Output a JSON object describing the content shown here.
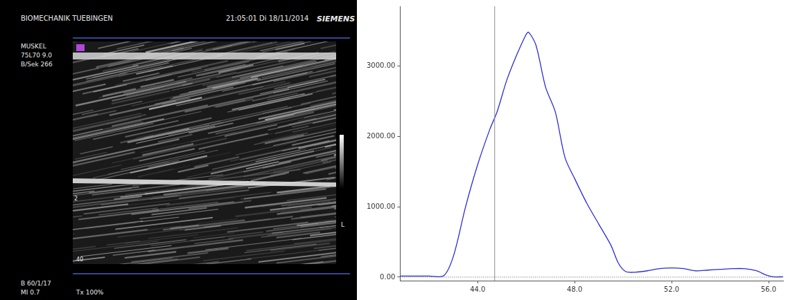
{
  "chart_data": {
    "type": "line",
    "color": "#2b2bd6",
    "grid": false,
    "tick_labels": true,
    "x": [
      40.8,
      41.5,
      42.0,
      42.6,
      43.0,
      43.5,
      44.0,
      44.5,
      44.8,
      45.2,
      45.6,
      46.0,
      46.1,
      46.4,
      46.8,
      47.2,
      47.6,
      48.0,
      48.5,
      49.0,
      49.5,
      49.8,
      50.1,
      50.5,
      51.0,
      51.5,
      52.0,
      52.5,
      53.0,
      53.5,
      54.0,
      54.5,
      55.0,
      55.5,
      55.9,
      56.2,
      56.6
    ],
    "values": [
      15,
      15,
      15,
      20,
      300,
      1000,
      1600,
      2100,
      2350,
      2800,
      3150,
      3450,
      3480,
      3300,
      2700,
      2350,
      1700,
      1400,
      1050,
      750,
      450,
      200,
      80,
      70,
      90,
      120,
      130,
      120,
      90,
      100,
      110,
      120,
      120,
      90,
      30,
      5,
      5
    ],
    "xlim": [
      40.8,
      56.6
    ],
    "xticks": [
      {
        "value": 44,
        "label": "44.0"
      },
      {
        "value": 48,
        "label": "48.0"
      },
      {
        "value": 52,
        "label": "52.0"
      },
      {
        "value": 56,
        "label": "56.0"
      }
    ],
    "ylim": [
      -50,
      3850
    ],
    "yticks": [
      {
        "value": 0,
        "label": "0.00"
      },
      {
        "value": 1000,
        "label": "1000.00"
      },
      {
        "value": 2000,
        "label": "2000.00"
      },
      {
        "value": 3000,
        "label": "3000.00"
      }
    ],
    "cursor": 44.7
  },
  "image": {
    "header": {
      "institute": "BIOMECHANIK TUEBINGEN",
      "datetime": "21:05:01  Di 18/11/2014",
      "brand": "SIEMENS"
    },
    "settings": [
      "MUSKEL",
      "75L70  9.0",
      "B/Sek  266"
    ],
    "footer": [
      "B  60/1/17",
      "MI 0.7",
      "Tx  100%"
    ],
    "side_label": "L",
    "depth_labels": [
      "2",
      "40"
    ]
  }
}
